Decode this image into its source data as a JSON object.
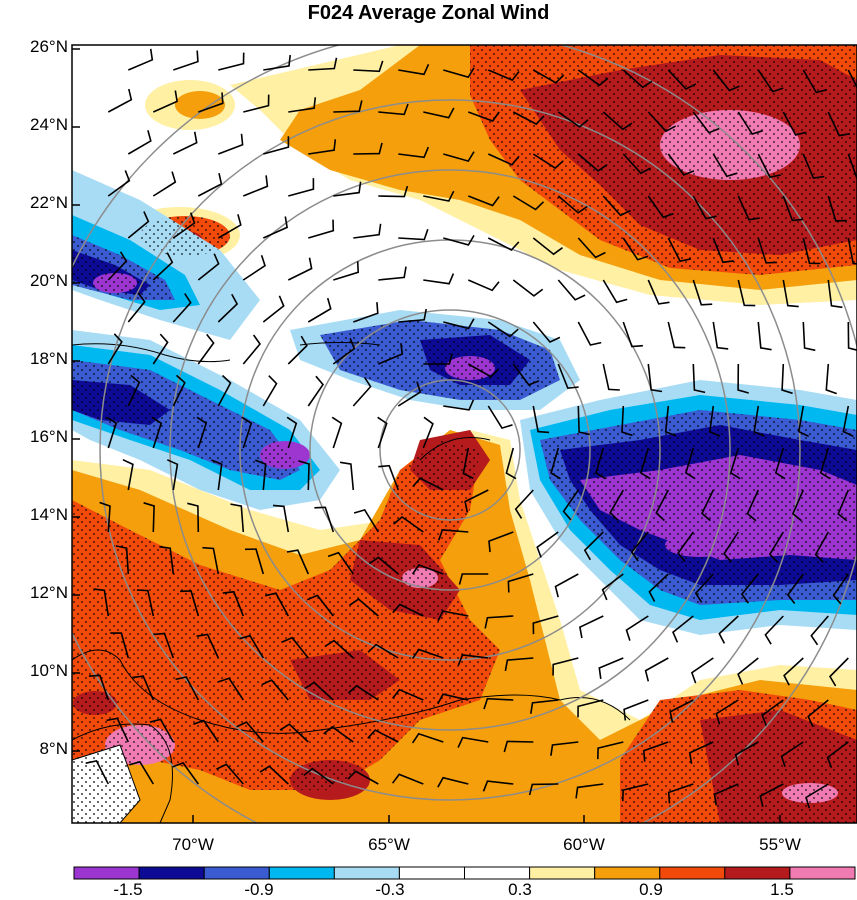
{
  "title": "F024 Average Zonal Wind",
  "map": {
    "lat_labels": [
      "26°N",
      "24°N",
      "22°N",
      "20°N",
      "18°N",
      "16°N",
      "14°N",
      "12°N",
      "10°N",
      "8°N"
    ],
    "lon_labels": [
      "70°W",
      "65°W",
      "60°W",
      "55°W"
    ]
  },
  "colorbar": {
    "colors": [
      "#9d36d1",
      "#0d0b96",
      "#3a5bd1",
      "#00b8f0",
      "#a8dcf5",
      "#ffffff",
      "#ffffff",
      "#fff0a3",
      "#f59f0c",
      "#f24a0a",
      "#b51a1c",
      "#f07bb3"
    ],
    "labels": [
      "-1.5",
      "-0.9",
      "-0.3",
      "0.3",
      "0.9",
      "1.5"
    ]
  }
}
